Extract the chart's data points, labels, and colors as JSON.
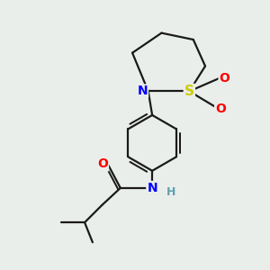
{
  "bg_color": "#eaeeea",
  "bond_color": "#1a1a1a",
  "bond_width": 1.6,
  "atom_colors": {
    "N": "#0000ff",
    "S": "#cccc00",
    "O": "#ff0000",
    "H": "#5fa0b0",
    "C": "#1a1a1a"
  }
}
